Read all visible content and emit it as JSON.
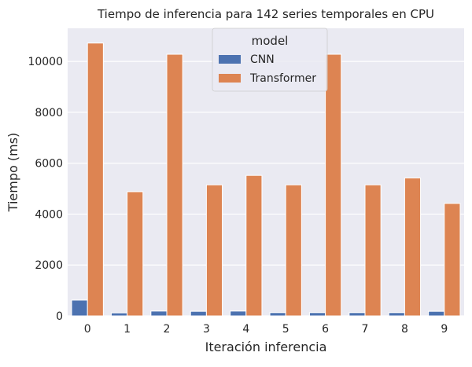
{
  "chart_data": {
    "type": "bar",
    "title": "Tiempo de inferencia para 142 series temporales en CPU",
    "xlabel": "Iteración inferencia",
    "ylabel": "Tiempo (ms)",
    "categories": [
      "0",
      "1",
      "2",
      "3",
      "4",
      "5",
      "6",
      "7",
      "8",
      "9"
    ],
    "series": [
      {
        "name": "CNN",
        "values": [
          620,
          120,
          190,
          180,
          190,
          130,
          130,
          130,
          130,
          180
        ]
      },
      {
        "name": "Transformer",
        "values": [
          10720,
          4880,
          10280,
          5150,
          5520,
          5150,
          10280,
          5150,
          5420,
          4420
        ]
      }
    ],
    "ylim": [
      0,
      11300
    ],
    "yticks": [
      0,
      2000,
      4000,
      6000,
      8000,
      10000
    ],
    "grid": true,
    "legend": {
      "title": "model",
      "position": "top-center"
    },
    "colors": {
      "CNN": "#4c72b0",
      "Transformer": "#dd8452",
      "background": "#eaeaf2",
      "grid": "#ffffff"
    }
  }
}
